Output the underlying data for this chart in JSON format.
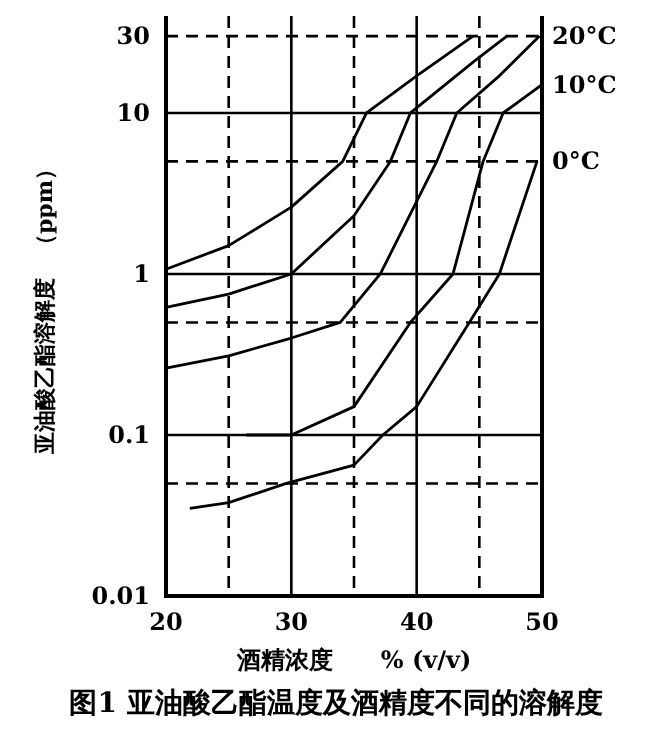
{
  "chart_data": {
    "type": "line",
    "title": "图1  亚油酸乙酯温度及酒精度不同的溶解度",
    "xlabel": "酒精浓度　　% (v/v)",
    "ylabel": "亚油酸乙酯溶解度　（ppm）",
    "log": "y",
    "grid": true,
    "xlim": [
      20,
      50
    ],
    "ylim": [
      0.01,
      40
    ],
    "xticks": [
      20,
      30,
      40,
      50
    ],
    "yticks": [
      0.01,
      0.1,
      1,
      10,
      30
    ],
    "series": [
      {
        "color": "#000000",
        "x": [
          20,
          25,
          30,
          34.1,
          36,
          40,
          44.5
        ],
        "values": [
          1.07,
          1.5,
          2.6,
          5,
          10,
          17,
          30
        ]
      },
      {
        "color": "#000000",
        "x": [
          20,
          25,
          30,
          35,
          37.9,
          39.5,
          44.6,
          47.2
        ],
        "values": [
          0.62,
          0.75,
          1,
          2.3,
          5,
          10,
          21,
          30
        ]
      },
      {
        "name": "20°C",
        "color": "#000000",
        "x": [
          20,
          25,
          30,
          33.9,
          37.1,
          41.6,
          43.2,
          46.6,
          49.8
        ],
        "values": [
          0.26,
          0.31,
          0.4,
          0.5,
          1,
          5,
          10,
          17,
          30
        ]
      },
      {
        "name": "10°C",
        "color": "#000000",
        "x": [
          26.4,
          30,
          35,
          39.5,
          42.9,
          45.3,
          46.9,
          50
        ],
        "values": [
          0.1,
          0.1,
          0.15,
          0.5,
          1,
          5,
          10,
          15
        ]
      },
      {
        "name": "0°C",
        "color": "#000000",
        "x": [
          21.9,
          25,
          29.6,
          35,
          37.3,
          40,
          44.2,
          46.6,
          49.6
        ],
        "values": [
          0.035,
          0.038,
          0.05,
          0.065,
          0.1,
          0.15,
          0.5,
          1,
          5
        ]
      }
    ],
    "ref_lines": [
      {
        "axis": "x",
        "value": 25,
        "line_style": "dashed",
        "color": "#000000"
      },
      {
        "axis": "x",
        "value": 35,
        "line_style": "dashed",
        "color": "#000000"
      },
      {
        "axis": "x",
        "value": 45,
        "line_style": "dashed",
        "color": "#000000"
      },
      {
        "axis": "y",
        "value": 0.05,
        "line_style": "dashed",
        "color": "#000000"
      },
      {
        "axis": "y",
        "value": 0.5,
        "line_style": "dashed",
        "color": "#000000"
      },
      {
        "axis": "y",
        "value": 5,
        "line_style": "dashed",
        "color": "#000000"
      },
      {
        "axis": "y",
        "value": 30,
        "line_style": "dashed",
        "color": "#000000"
      }
    ]
  }
}
